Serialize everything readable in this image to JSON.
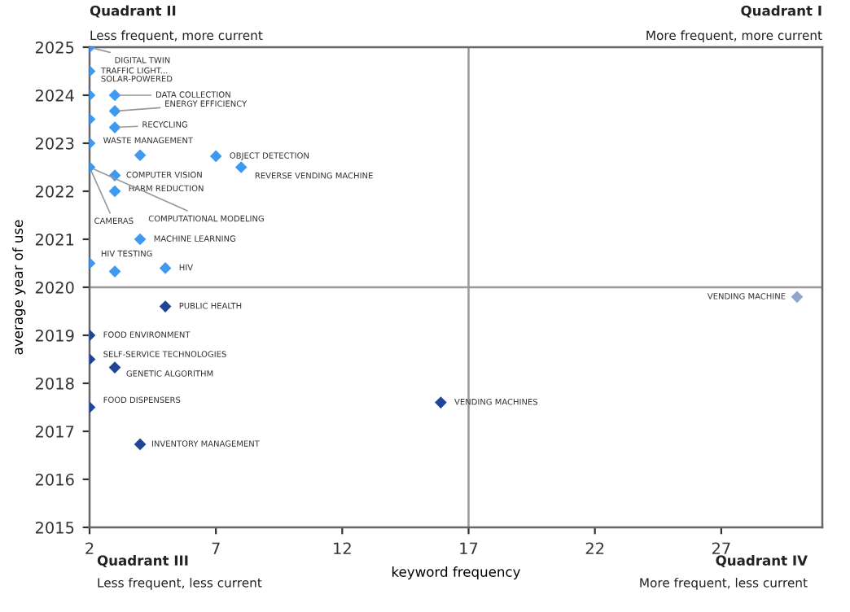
{
  "chart_data": {
    "type": "scatter",
    "xlabel": "keyword frequency",
    "ylabel": "average year of use",
    "xlim": [
      2,
      31
    ],
    "ylim": [
      2015,
      2025
    ],
    "xticks": [
      2,
      7,
      12,
      17,
      22,
      27
    ],
    "yticks": [
      2015,
      2016,
      2017,
      2018,
      2019,
      2020,
      2021,
      2022,
      2023,
      2024,
      2025
    ],
    "marker": "diamond",
    "grid": false,
    "legend": false,
    "series": [
      {
        "color": "#3d9af0",
        "x": [
          2,
          2,
          2,
          3,
          3,
          3,
          2,
          2,
          4,
          7,
          8,
          3,
          2,
          3,
          4,
          2,
          3,
          5
        ],
        "values": [
          2025,
          2024.5,
          2024,
          2024,
          2023.67,
          2023.33,
          2023.5,
          2023,
          2022.75,
          2022.73,
          2022.5,
          2022.33,
          2022.5,
          2022,
          2021,
          2020.5,
          2020.33,
          2020.4
        ]
      },
      {
        "color": "#1f4596",
        "x": [
          5,
          2,
          2,
          3,
          2,
          4,
          15.9
        ],
        "values": [
          2019.6,
          2019,
          2018.5,
          2018.33,
          2017.5,
          2016.73,
          2017.6
        ]
      },
      {
        "color": "#8fa5c9",
        "x": [
          30
        ],
        "values": [
          2019.8
        ]
      }
    ],
    "ref_lines": [
      {
        "axis": "x",
        "value": 17,
        "color": "#999999"
      },
      {
        "axis": "y",
        "value": 2020,
        "color": "#999999"
      }
    ],
    "annotations": [
      "Quadrant II",
      "Less frequent, more current",
      "Quadrant I",
      "More frequent, more current",
      "Quadrant III",
      "Less frequent, less current",
      "Quadrant IV",
      "More frequent, less current",
      {
        "text": "DIGITAL TWIN",
        "x": 2,
        "y": 2025
      },
      {
        "text": "TRAFFIC LIGHT...",
        "x": 2,
        "y": 2024.5
      },
      {
        "text": "SOLAR-POWERED",
        "x": 2,
        "y": 2024
      },
      {
        "text": "DATA COLLECTION",
        "x": 3,
        "y": 2024
      },
      {
        "text": "ENERGY EFFICIENCY",
        "x": 3,
        "y": 2023.67
      },
      {
        "text": "RECYCLING",
        "x": 3,
        "y": 2023.33
      },
      {
        "text": "WASTE MANAGEMENT",
        "x": 2,
        "y": 2023
      },
      {
        "text": "OBJECT DETECTION",
        "x": 7,
        "y": 2022.73
      },
      {
        "text": "REVERSE VENDING MACHINE",
        "x": 8,
        "y": 2022.5
      },
      {
        "text": "COMPUTER VISION",
        "x": 3,
        "y": 2022.33
      },
      {
        "text": "HARM REDUCTION",
        "x": 3,
        "y": 2022
      },
      {
        "text": "COMPUTATIONAL MODELING",
        "x": 2,
        "y": 2022.5
      },
      {
        "text": "CAMERAS",
        "x": 2,
        "y": 2022.5
      },
      {
        "text": "MACHINE LEARNING",
        "x": 4,
        "y": 2021
      },
      {
        "text": "HIV TESTING",
        "x": 2,
        "y": 2020.5
      },
      {
        "text": "HIV",
        "x": 5,
        "y": 2020.4
      },
      {
        "text": "PUBLIC HEALTH",
        "x": 5,
        "y": 2019.6
      },
      {
        "text": "FOOD ENVIRONMENT",
        "x": 2,
        "y": 2019
      },
      {
        "text": "SELF-SERVICE TECHNOLOGIES",
        "x": 2,
        "y": 2018.5
      },
      {
        "text": "GENETIC ALGORITHM",
        "x": 3,
        "y": 2018.33
      },
      {
        "text": "FOOD DISPENSERS",
        "x": 2,
        "y": 2017.5
      },
      {
        "text": "INVENTORY MANAGEMENT",
        "x": 4,
        "y": 2016.73
      },
      {
        "text": "VENDING MACHINES",
        "x": 15.9,
        "y": 2017.6
      },
      {
        "text": "VENDING MACHINE",
        "x": 30,
        "y": 2019.8
      }
    ]
  }
}
